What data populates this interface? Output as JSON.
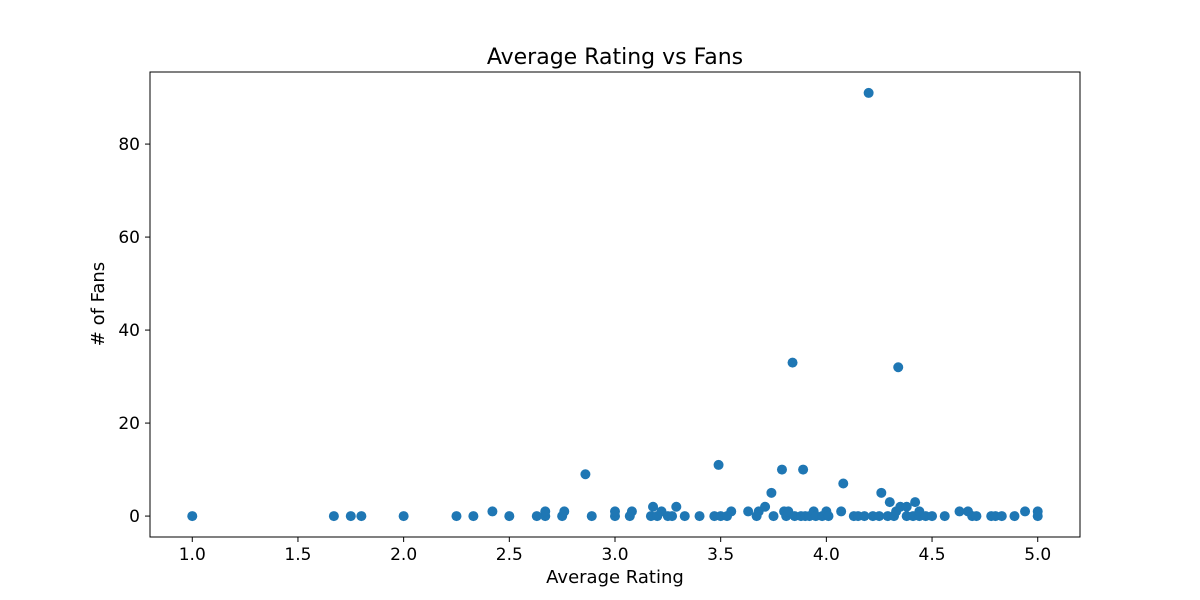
{
  "chart_data": {
    "type": "scatter",
    "title": "Average Rating vs Fans",
    "xlabel": "Average Rating",
    "ylabel": "# of Fans",
    "xlim": [
      0.8,
      5.2
    ],
    "ylim": [
      -4.5,
      95.5
    ],
    "x_ticks": [
      1.0,
      1.5,
      2.0,
      2.5,
      3.0,
      3.5,
      4.0,
      4.5,
      5.0
    ],
    "x_tick_labels": [
      "1.0",
      "1.5",
      "2.0",
      "2.5",
      "3.0",
      "3.5",
      "4.0",
      "4.5",
      "5.0"
    ],
    "y_ticks": [
      0,
      20,
      40,
      60,
      80
    ],
    "y_tick_labels": [
      "0",
      "20",
      "40",
      "60",
      "80"
    ],
    "grid": false,
    "marker_color": "#1f77b4",
    "points": [
      [
        1.0,
        0
      ],
      [
        1.67,
        0
      ],
      [
        1.75,
        0
      ],
      [
        1.8,
        0
      ],
      [
        2.0,
        0
      ],
      [
        2.25,
        0
      ],
      [
        2.33,
        0
      ],
      [
        2.42,
        1
      ],
      [
        2.5,
        0
      ],
      [
        2.63,
        0
      ],
      [
        2.67,
        0
      ],
      [
        2.67,
        1
      ],
      [
        2.75,
        0
      ],
      [
        2.76,
        1
      ],
      [
        2.86,
        9
      ],
      [
        2.89,
        0
      ],
      [
        3.0,
        0
      ],
      [
        3.0,
        1
      ],
      [
        3.07,
        0
      ],
      [
        3.08,
        1
      ],
      [
        3.17,
        0
      ],
      [
        3.18,
        2
      ],
      [
        3.2,
        0
      ],
      [
        3.22,
        1
      ],
      [
        3.25,
        0
      ],
      [
        3.27,
        0
      ],
      [
        3.29,
        2
      ],
      [
        3.33,
        0
      ],
      [
        3.4,
        0
      ],
      [
        3.47,
        0
      ],
      [
        3.49,
        11
      ],
      [
        3.5,
        0
      ],
      [
        3.53,
        0
      ],
      [
        3.55,
        1
      ],
      [
        3.63,
        1
      ],
      [
        3.67,
        0
      ],
      [
        3.68,
        1
      ],
      [
        3.71,
        2
      ],
      [
        3.74,
        5
      ],
      [
        3.75,
        0
      ],
      [
        3.79,
        10
      ],
      [
        3.8,
        1
      ],
      [
        3.81,
        0
      ],
      [
        3.82,
        1
      ],
      [
        3.84,
        33
      ],
      [
        3.85,
        0
      ],
      [
        3.88,
        0
      ],
      [
        3.89,
        10
      ],
      [
        3.9,
        0
      ],
      [
        3.92,
        0
      ],
      [
        3.94,
        1
      ],
      [
        3.95,
        0
      ],
      [
        3.98,
        0
      ],
      [
        4.0,
        1
      ],
      [
        4.01,
        0
      ],
      [
        4.07,
        1
      ],
      [
        4.08,
        7
      ],
      [
        4.13,
        0
      ],
      [
        4.15,
        0
      ],
      [
        4.18,
        0
      ],
      [
        4.2,
        91
      ],
      [
        4.22,
        0
      ],
      [
        4.25,
        0
      ],
      [
        4.26,
        5
      ],
      [
        4.29,
        0
      ],
      [
        4.3,
        3
      ],
      [
        4.32,
        0
      ],
      [
        4.33,
        1
      ],
      [
        4.34,
        32
      ],
      [
        4.35,
        2
      ],
      [
        4.38,
        2
      ],
      [
        4.38,
        0
      ],
      [
        4.41,
        0
      ],
      [
        4.42,
        3
      ],
      [
        4.44,
        0
      ],
      [
        4.44,
        1
      ],
      [
        4.47,
        0
      ],
      [
        4.5,
        0
      ],
      [
        4.56,
        0
      ],
      [
        4.63,
        1
      ],
      [
        4.67,
        1
      ],
      [
        4.69,
        0
      ],
      [
        4.71,
        0
      ],
      [
        4.78,
        0
      ],
      [
        4.8,
        0
      ],
      [
        4.83,
        0
      ],
      [
        4.89,
        0
      ],
      [
        4.94,
        1
      ],
      [
        5.0,
        0
      ],
      [
        5.0,
        1
      ]
    ]
  }
}
